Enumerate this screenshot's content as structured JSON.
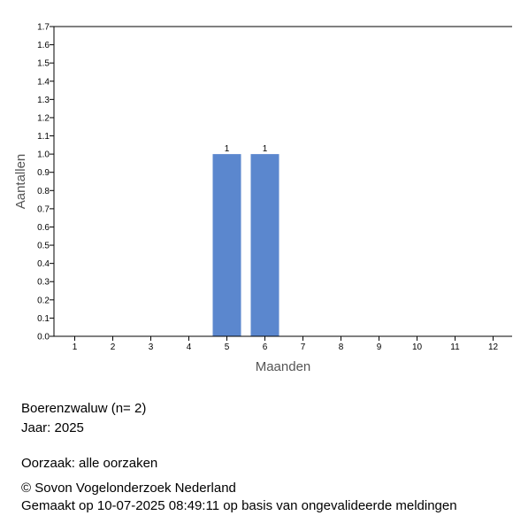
{
  "chart_data": {
    "type": "bar",
    "xlabel": "Maanden",
    "ylabel": "Aantallen",
    "categories": [
      "1",
      "2",
      "3",
      "4",
      "5",
      "6",
      "7",
      "8",
      "9",
      "10",
      "11",
      "12"
    ],
    "values": [
      0,
      0,
      0,
      0,
      1,
      1,
      0,
      0,
      0,
      0,
      0,
      0
    ],
    "data_labels": [
      "",
      "",
      "",
      "",
      "1",
      "1",
      "",
      "",
      "",
      "",
      "",
      ""
    ],
    "ylim": [
      0,
      1.7
    ],
    "yticks": [
      "0.0",
      "0.1",
      "0.2",
      "0.3",
      "0.4",
      "0.5",
      "0.6",
      "0.7",
      "0.8",
      "0.9",
      "1.0",
      "1.1",
      "1.2",
      "1.3",
      "1.4",
      "1.5",
      "1.6",
      "1.7"
    ],
    "bar_color": "#5b87ce",
    "grid": false,
    "legend": "none"
  },
  "info": {
    "species": "Boerenzwaluw  (n= 2)",
    "year": "Jaar: 2025",
    "cause": "Oorzaak: alle oorzaken",
    "copyright": "© Sovon Vogelonderzoek Nederland",
    "made": "Gemaakt op 10-07-2025 08:49:11 op basis van ongevalideerde meldingen"
  }
}
